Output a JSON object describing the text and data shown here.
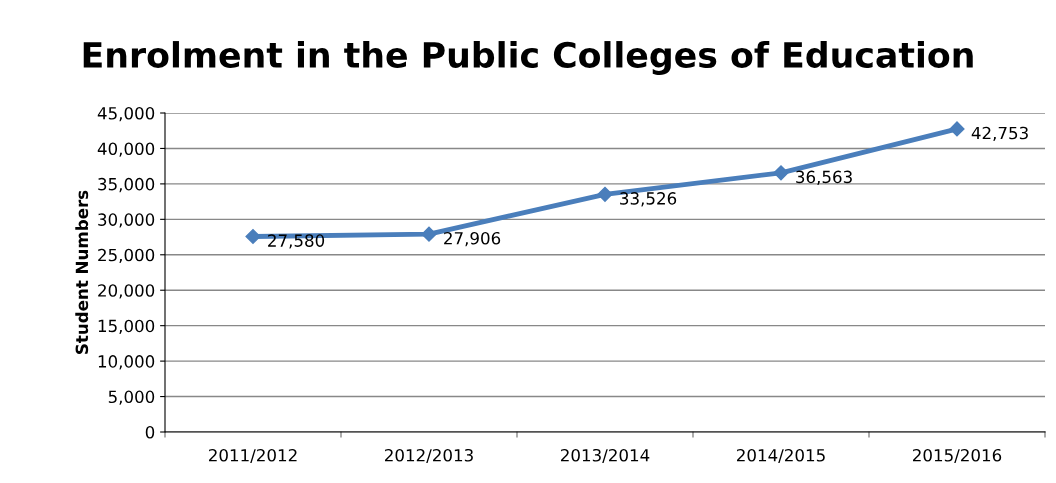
{
  "chart_data": {
    "type": "line",
    "title": "Enrolment in the Public Colleges of Education",
    "ylabel": "Student Numbers",
    "categories": [
      "2011/2012",
      "2012/2013",
      "2013/2014",
      "2014/2015",
      "2015/2016"
    ],
    "series": [
      {
        "color": "#4a7ebb",
        "values": [
          27580,
          27906,
          33526,
          36563,
          42753
        ]
      }
    ],
    "value_labels": [
      "27,580",
      "27,906",
      "33,526",
      "36,563",
      "42,753"
    ],
    "ylim": [
      0,
      45000
    ],
    "yticks": [
      {
        "value": 0,
        "label": "0"
      },
      {
        "value": 5000,
        "label": "5,000"
      },
      {
        "value": 10000,
        "label": "10,000"
      },
      {
        "value": 15000,
        "label": "15,000"
      },
      {
        "value": 20000,
        "label": "20,000"
      },
      {
        "value": 25000,
        "label": "25,000"
      },
      {
        "value": 30000,
        "label": "30,000"
      },
      {
        "value": 35000,
        "label": "35,000"
      },
      {
        "value": 40000,
        "label": "40,000"
      },
      {
        "value": 45000,
        "label": "45,000"
      }
    ],
    "grid": "y",
    "marker": "diamond",
    "line_style": "solid",
    "legend": false
  }
}
